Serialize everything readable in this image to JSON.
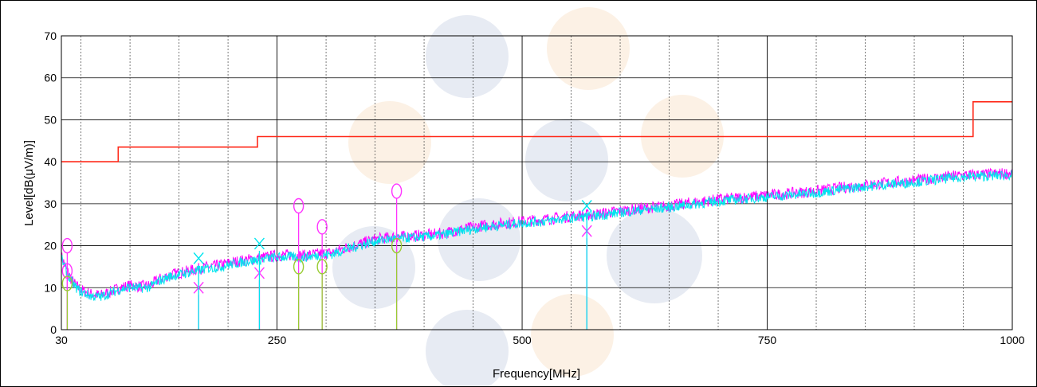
{
  "chart_data": {
    "type": "line",
    "xlabel": "Frequency[MHz]",
    "ylabel": "Level[dB(μV/m)]",
    "xlim": [
      30,
      1000
    ],
    "ylim": [
      0,
      70
    ],
    "x_ticks": [
      30,
      250,
      500,
      750,
      1000
    ],
    "y_ticks": [
      0,
      10,
      20,
      30,
      40,
      50,
      60,
      70
    ],
    "x_minor_step": 50,
    "grid": true,
    "colors": {
      "limit": "#ff2a1a",
      "trace_magenta": "#ff00ff",
      "trace_cyan": "#00e5ee",
      "marker_magenta": "#ff33ff",
      "marker_green": "#99cc33"
    },
    "series": [
      {
        "x": [
          30,
          88,
          88,
          230,
          230,
          960,
          960,
          1000
        ],
        "y": [
          40,
          40,
          43.5,
          43.5,
          46,
          46,
          54.3,
          54.3
        ],
        "style": "step",
        "color": "#ff2a1a"
      },
      {
        "x": [
          30,
          35,
          40,
          45,
          50,
          55,
          60,
          70,
          80,
          90,
          100,
          110,
          120,
          130,
          140,
          150,
          160,
          170,
          180,
          190,
          200,
          215,
          230,
          245,
          260,
          275,
          290,
          305,
          320,
          335,
          350,
          365,
          380,
          400,
          420,
          440,
          460,
          480,
          500,
          525,
          550,
          575,
          600,
          625,
          650,
          675,
          700,
          725,
          750,
          775,
          800,
          825,
          850,
          875,
          900,
          925,
          950,
          975,
          1000
        ],
        "y": [
          17.5,
          14.5,
          12,
          10.5,
          9.5,
          9,
          8.5,
          8.2,
          9,
          10,
          10.5,
          10.3,
          10.5,
          12,
          13,
          13.5,
          14,
          14.5,
          15,
          15.3,
          15.8,
          16.5,
          17,
          17.5,
          17.8,
          17.6,
          18,
          18.3,
          19.5,
          20.5,
          21.5,
          22,
          22.2,
          22.5,
          23,
          24,
          24.8,
          25.3,
          25.8,
          26.3,
          27,
          27.5,
          28.3,
          29,
          29.5,
          30.3,
          31,
          31.5,
          32,
          32.5,
          33,
          33.8,
          34.5,
          35,
          35.5,
          36.2,
          36.8,
          37,
          37.3
        ],
        "noise": 1.4,
        "color": "#ff00ff"
      },
      {
        "x": [
          30,
          35,
          40,
          45,
          50,
          55,
          60,
          70,
          80,
          90,
          100,
          110,
          120,
          130,
          140,
          150,
          160,
          170,
          180,
          190,
          200,
          215,
          230,
          245,
          260,
          275,
          290,
          305,
          320,
          335,
          350,
          365,
          380,
          400,
          420,
          440,
          460,
          480,
          500,
          525,
          550,
          575,
          600,
          625,
          650,
          675,
          700,
          725,
          750,
          775,
          800,
          825,
          850,
          875,
          900,
          925,
          950,
          975,
          1000
        ],
        "y": [
          17,
          14,
          11.5,
          10,
          9,
          8.5,
          8,
          7.8,
          8.7,
          9.6,
          10.1,
          9.9,
          10.1,
          11.6,
          12.6,
          13.1,
          13.6,
          14.1,
          14.6,
          14.9,
          15.4,
          16.1,
          16.6,
          17.1,
          17.4,
          17.2,
          17.6,
          17.9,
          19.1,
          20.1,
          21.1,
          21.6,
          21.8,
          22.1,
          22.6,
          23.6,
          24.4,
          24.9,
          25.4,
          25.9,
          26.6,
          27.1,
          27.9,
          28.6,
          29.1,
          29.9,
          30.6,
          31.1,
          31.6,
          32.1,
          32.6,
          33.4,
          34.1,
          34.6,
          35.1,
          35.8,
          36.4,
          36.6,
          36.9
        ],
        "noise": 1.2,
        "color": "#00e5ee"
      }
    ],
    "markers": [
      {
        "x": 36,
        "y": 20,
        "shape": "circle",
        "color": "#ff33ff"
      },
      {
        "x": 36,
        "y": 14,
        "shape": "circle",
        "color": "#ff33ff"
      },
      {
        "x": 36,
        "y": 11,
        "shape": "circle",
        "color": "#99cc33"
      },
      {
        "x": 170,
        "y": 10,
        "shape": "x",
        "color": "#ff33ff"
      },
      {
        "x": 170,
        "y": 17,
        "shape": "x",
        "color": "#00e5ee"
      },
      {
        "x": 232,
        "y": 13.5,
        "shape": "x",
        "color": "#ff33ff"
      },
      {
        "x": 232,
        "y": 20.5,
        "shape": "x",
        "color": "#00e5ee"
      },
      {
        "x": 272,
        "y": 29.5,
        "shape": "circle",
        "color": "#ff33ff"
      },
      {
        "x": 272,
        "y": 15,
        "shape": "circle",
        "color": "#99cc33"
      },
      {
        "x": 296,
        "y": 24.5,
        "shape": "circle",
        "color": "#ff33ff"
      },
      {
        "x": 296,
        "y": 15,
        "shape": "circle",
        "color": "#99cc33"
      },
      {
        "x": 372,
        "y": 33,
        "shape": "circle",
        "color": "#ff33ff"
      },
      {
        "x": 372,
        "y": 20,
        "shape": "circle",
        "color": "#99cc33"
      },
      {
        "x": 566,
        "y": 23.5,
        "shape": "x",
        "color": "#ff33ff"
      },
      {
        "x": 566,
        "y": 29.5,
        "shape": "x",
        "color": "#00e5ee"
      }
    ]
  }
}
